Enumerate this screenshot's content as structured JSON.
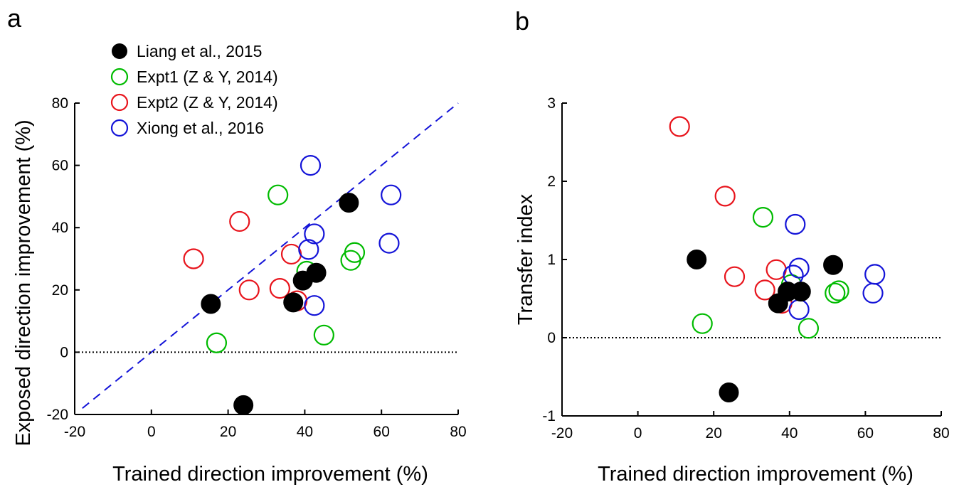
{
  "panel_labels": [
    "a",
    "b"
  ],
  "legend": [
    {
      "label": "Liang et al., 2015",
      "style": "filled",
      "color": "#000000"
    },
    {
      "label": "Expt1 (Z & Y, 2014)",
      "style": "open",
      "color": "#00bb00"
    },
    {
      "label": "Expt2 (Z & Y, 2014)",
      "style": "open",
      "color": "#e8141c"
    },
    {
      "label": "Xiong et al., 2016",
      "style": "open",
      "color": "#1414d8"
    }
  ],
  "chart_data": [
    {
      "type": "scatter",
      "panel": "a",
      "xlabel": "Trained direction improvement (%)",
      "ylabel": "Exposed direction improvement (%)",
      "xlim": [
        -20,
        80
      ],
      "ylim": [
        -20,
        80
      ],
      "xticks": [
        "-20",
        "0",
        "20",
        "40",
        "60",
        "80"
      ],
      "yticks": [
        "-20",
        "0",
        "20",
        "40",
        "60",
        "80"
      ],
      "reference_lines": [
        {
          "kind": "identity",
          "style": "dashed",
          "color": "#1414d8"
        },
        {
          "kind": "horizontal",
          "y": 0,
          "style": "dotted",
          "color": "#000000"
        }
      ],
      "series": [
        {
          "name": "Liang et al., 2015",
          "points": [
            [
              15.5,
              15.5
            ],
            [
              24,
              -17
            ],
            [
              37,
              16
            ],
            [
              39.5,
              23
            ],
            [
              43,
              25.5
            ],
            [
              51.5,
              48
            ]
          ]
        },
        {
          "name": "Expt1 (Z & Y, 2014)",
          "points": [
            [
              17,
              3
            ],
            [
              33,
              50.5
            ],
            [
              40.5,
              26
            ],
            [
              45,
              5.5
            ],
            [
              52,
              29.5
            ],
            [
              53,
              32
            ]
          ]
        },
        {
          "name": "Expt2 (Z & Y, 2014)",
          "points": [
            [
              11,
              30
            ],
            [
              23,
              42
            ],
            [
              25.5,
              20
            ],
            [
              33.5,
              20.5
            ],
            [
              36.5,
              31.5
            ],
            [
              38,
              16.5
            ]
          ]
        },
        {
          "name": "Xiong et al., 2016",
          "points": [
            [
              41,
              33
            ],
            [
              41.5,
              60
            ],
            [
              42.5,
              15
            ],
            [
              42.5,
              38
            ],
            [
              62,
              35
            ],
            [
              62.5,
              50.5
            ]
          ]
        }
      ]
    },
    {
      "type": "scatter",
      "panel": "b",
      "xlabel": "Trained direction improvement (%)",
      "ylabel": "Transfer index",
      "xlim": [
        -20,
        80
      ],
      "ylim": [
        -1,
        3
      ],
      "xticks": [
        "-20",
        "0",
        "20",
        "40",
        "60",
        "80"
      ],
      "yticks": [
        "-1",
        "0",
        "1",
        "2",
        "3"
      ],
      "reference_lines": [
        {
          "kind": "horizontal",
          "y": 0,
          "style": "dotted",
          "color": "#000000"
        }
      ],
      "series": [
        {
          "name": "Liang et al., 2015",
          "points": [
            [
              15.5,
              1.0
            ],
            [
              24,
              -0.7
            ],
            [
              37,
              0.44
            ],
            [
              39.5,
              0.59
            ],
            [
              43,
              0.59
            ],
            [
              51.5,
              0.93
            ]
          ]
        },
        {
          "name": "Expt1 (Z & Y, 2014)",
          "points": [
            [
              17,
              0.18
            ],
            [
              33,
              1.54
            ],
            [
              40.5,
              0.68
            ],
            [
              45,
              0.12
            ],
            [
              52,
              0.57
            ],
            [
              53,
              0.6
            ]
          ]
        },
        {
          "name": "Expt2 (Z & Y, 2014)",
          "points": [
            [
              11,
              2.7
            ],
            [
              23,
              1.81
            ],
            [
              25.5,
              0.78
            ],
            [
              33.5,
              0.61
            ],
            [
              36.5,
              0.87
            ],
            [
              38,
              0.44
            ]
          ]
        },
        {
          "name": "Xiong et al., 2016",
          "points": [
            [
              41,
              0.8
            ],
            [
              41.5,
              1.45
            ],
            [
              42.5,
              0.36
            ],
            [
              42.5,
              0.89
            ],
            [
              62,
              0.57
            ],
            [
              62.5,
              0.81
            ]
          ]
        }
      ]
    }
  ]
}
